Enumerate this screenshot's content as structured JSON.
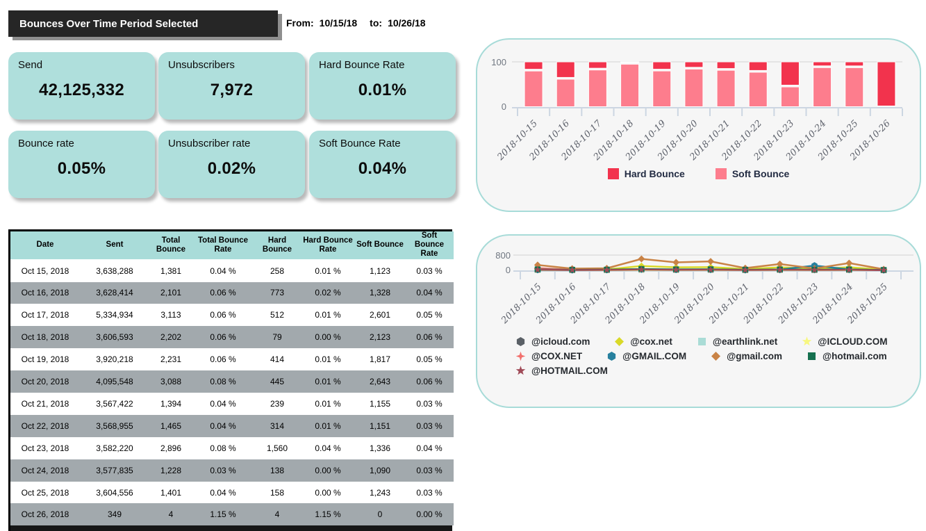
{
  "header": {
    "title": "Bounces Over Time Period Selected",
    "from_label": "From:",
    "from_value": "10/15/18",
    "to_label": "to:",
    "to_value": "10/26/18"
  },
  "kpis": [
    {
      "label": "Send",
      "value": "42,125,332"
    },
    {
      "label": "Unsubscribers",
      "value": "7,972"
    },
    {
      "label": "Hard Bounce Rate",
      "value": "0.01%"
    },
    {
      "label": "Bounce rate",
      "value": "0.05%"
    },
    {
      "label": "Unsubscriber rate",
      "value": "0.02%"
    },
    {
      "label": "Soft Bounce Rate",
      "value": "0.04%"
    }
  ],
  "table": {
    "columns": [
      "Date",
      "Sent",
      "Total Bounce",
      "Total Bounce Rate",
      "Hard Bounce",
      "Hard Bounce Rate",
      "Soft Bounce",
      "Soft Bounce Rate"
    ],
    "rows": [
      [
        "Oct 15, 2018",
        "3,638,288",
        "1,381",
        "0.04 %",
        "258",
        "0.01 %",
        "1,123",
        "0.03 %"
      ],
      [
        "Oct 16, 2018",
        "3,628,414",
        "2,101",
        "0.06 %",
        "773",
        "0.02 %",
        "1,328",
        "0.04 %"
      ],
      [
        "Oct 17, 2018",
        "5,334,934",
        "3,113",
        "0.06 %",
        "512",
        "0.01 %",
        "2,601",
        "0.05 %"
      ],
      [
        "Oct 18, 2018",
        "3,606,593",
        "2,202",
        "0.06 %",
        "79",
        "0.00 %",
        "2,123",
        "0.06 %"
      ],
      [
        "Oct 19, 2018",
        "3,920,218",
        "2,231",
        "0.06 %",
        "414",
        "0.01 %",
        "1,817",
        "0.05 %"
      ],
      [
        "Oct 20, 2018",
        "4,095,548",
        "3,088",
        "0.08 %",
        "445",
        "0.01 %",
        "2,643",
        "0.06 %"
      ],
      [
        "Oct 21, 2018",
        "3,567,422",
        "1,394",
        "0.04 %",
        "239",
        "0.01 %",
        "1,155",
        "0.03 %"
      ],
      [
        "Oct 22, 2018",
        "3,568,955",
        "1,465",
        "0.04 %",
        "314",
        "0.01 %",
        "1,151",
        "0.03 %"
      ],
      [
        "Oct 23, 2018",
        "3,582,220",
        "2,896",
        "0.08 %",
        "1,560",
        "0.04 %",
        "1,336",
        "0.04 %"
      ],
      [
        "Oct 24, 2018",
        "3,577,835",
        "1,228",
        "0.03 %",
        "138",
        "0.00 %",
        "1,090",
        "0.03 %"
      ],
      [
        "Oct 25, 2018",
        "3,604,556",
        "1,401",
        "0.04 %",
        "158",
        "0.00 %",
        "1,243",
        "0.03 %"
      ],
      [
        "Oct 26, 2018",
        "349",
        "4",
        "1.15 %",
        "4",
        "1.15 %",
        "0",
        "0.00 %"
      ]
    ]
  },
  "chart_data": [
    {
      "type": "bar",
      "stacked": true,
      "percent_composition": true,
      "categories": [
        "2018-10-15",
        "2018-10-16",
        "2018-10-17",
        "2018-10-18",
        "2018-10-19",
        "2018-10-20",
        "2018-10-21",
        "2018-10-22",
        "2018-10-23",
        "2018-10-24",
        "2018-10-25",
        "2018-10-26"
      ],
      "series": [
        {
          "name": "Hard Bounce",
          "color": "#f2334d",
          "values": [
            18.7,
            36.8,
            16.4,
            3.6,
            18.6,
            14.4,
            17.1,
            21.4,
            53.9,
            11.2,
            11.3,
            100
          ]
        },
        {
          "name": "Soft Bounce",
          "color": "#fd7d8d",
          "values": [
            81.3,
            63.2,
            83.6,
            96.4,
            81.4,
            85.6,
            82.9,
            78.6,
            46.1,
            88.8,
            88.7,
            0
          ]
        }
      ],
      "ylim": [
        0,
        100
      ],
      "yticks": [
        0,
        100
      ],
      "grid": "top-line-only",
      "legend_position": "bottom"
    },
    {
      "type": "line",
      "categories": [
        "2018-10-15",
        "2018-10-16",
        "2018-10-17",
        "2018-10-18",
        "2018-10-19",
        "2018-10-20",
        "2018-10-21",
        "2018-10-22",
        "2018-10-23",
        "2018-10-24",
        "2018-10-25"
      ],
      "series": [
        {
          "name": "@icloud.com",
          "color": "#5a6066",
          "marker": "hexagon",
          "values": [
            40,
            20,
            25,
            45,
            35,
            35,
            20,
            30,
            25,
            30,
            15
          ]
        },
        {
          "name": "@cox.net",
          "color": "#d9d928",
          "marker": "diamond",
          "values": [
            100,
            40,
            50,
            230,
            160,
            170,
            70,
            160,
            90,
            160,
            40
          ]
        },
        {
          "name": "@earthlink.net",
          "color": "#aadcd6",
          "marker": "square",
          "values": [
            20,
            10,
            12,
            25,
            18,
            20,
            12,
            18,
            15,
            18,
            8
          ]
        },
        {
          "name": "@ICLOUD.COM",
          "color": "#f7f77f",
          "marker": "star5",
          "values": [
            15,
            8,
            10,
            20,
            15,
            15,
            10,
            14,
            12,
            14,
            6
          ]
        },
        {
          "name": "@COX.NET",
          "color": "#f2706d",
          "marker": "star4",
          "values": [
            120,
            25,
            30,
            50,
            40,
            40,
            25,
            35,
            25,
            35,
            15
          ]
        },
        {
          "name": "@GMAIL.COM",
          "color": "#27809e",
          "marker": "hexagon",
          "values": [
            30,
            20,
            25,
            60,
            40,
            45,
            25,
            40,
            250,
            50,
            20
          ]
        },
        {
          "name": "@gmail.com",
          "color": "#c98346",
          "marker": "diamond",
          "values": [
            280,
            90,
            110,
            600,
            420,
            470,
            120,
            330,
            100,
            380,
            60
          ]
        },
        {
          "name": "@hotmail.com",
          "color": "#16714f",
          "marker": "square",
          "values": [
            50,
            30,
            35,
            70,
            50,
            55,
            30,
            45,
            35,
            45,
            20
          ]
        },
        {
          "name": "@HOTMAIL.COM",
          "color": "#a04b58",
          "marker": "star5",
          "values": [
            35,
            20,
            22,
            40,
            30,
            32,
            20,
            28,
            22,
            28,
            12
          ]
        }
      ],
      "ylim": [
        0,
        800
      ],
      "yticks": [
        0,
        800
      ],
      "grid": "top-line-only",
      "legend_position": "bottom"
    }
  ],
  "colors": {
    "kpi_card": "#afdfdc",
    "table_header": "#a9dcd9",
    "table_alt_row": "#a2a9ad",
    "hard_bounce": "#f2334d",
    "soft_bounce": "#fd7d8d",
    "chart_card_border": "#a7dbd8",
    "title_bar_bg": "#262626"
  }
}
